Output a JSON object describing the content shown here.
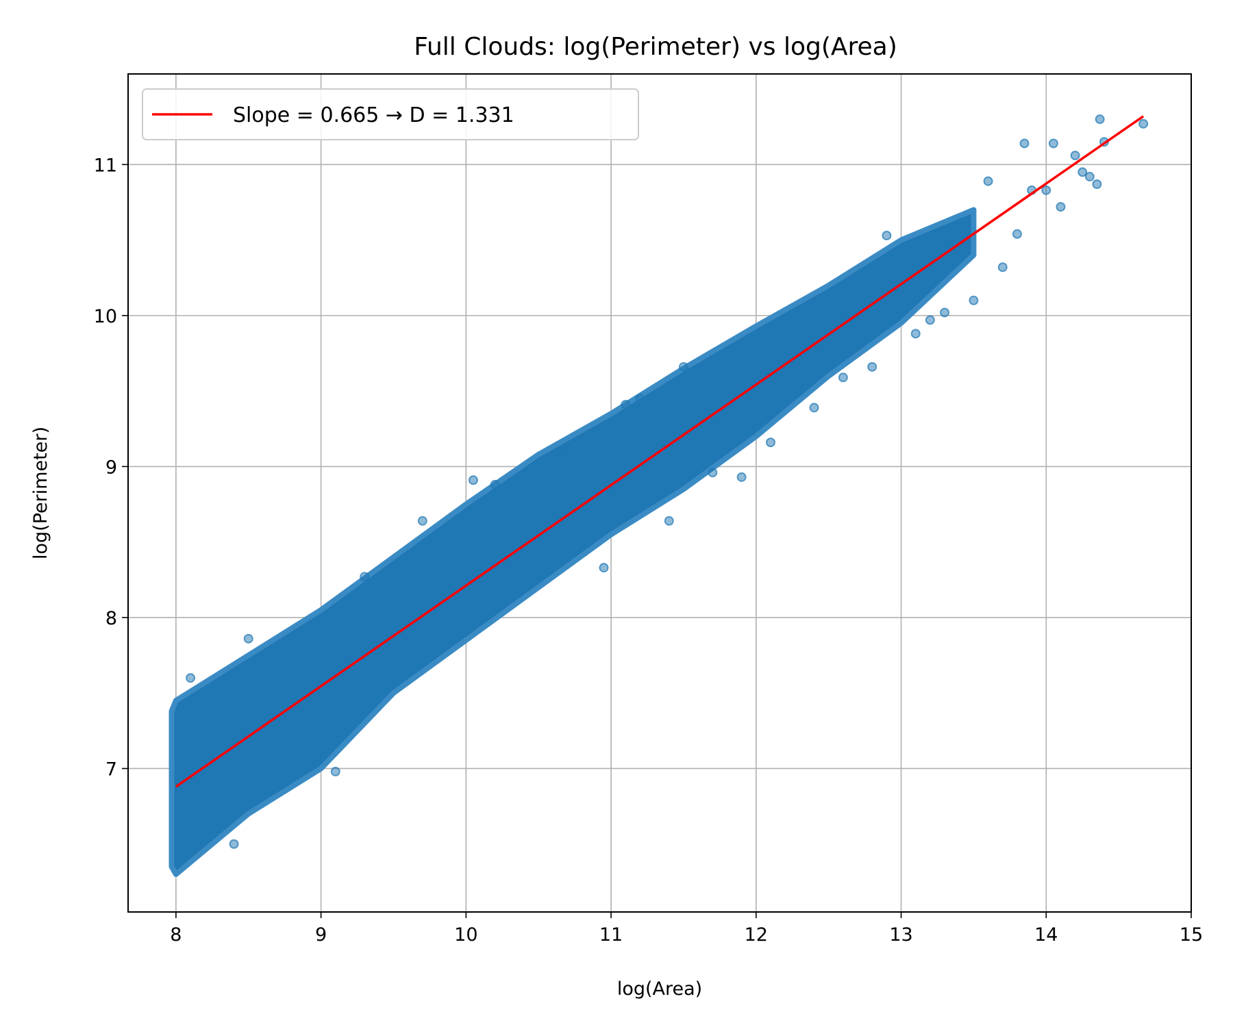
{
  "chart_data": {
    "type": "scatter",
    "title": "Full Clouds: log(Perimeter) vs log(Area)",
    "xlabel": "log(Area)",
    "ylabel": "log(Perimeter)",
    "xlim": [
      7.67,
      15.0
    ],
    "ylim": [
      6.05,
      11.6
    ],
    "x_ticks": [
      8,
      9,
      10,
      11,
      12,
      13,
      14,
      15
    ],
    "y_ticks": [
      7,
      8,
      9,
      10,
      11
    ],
    "x_tick_labels": [
      "8",
      "9",
      "10",
      "11",
      "12",
      "13",
      "14",
      "15"
    ],
    "y_tick_labels": [
      "7",
      "8",
      "9",
      "10",
      "11"
    ],
    "grid": true,
    "legend_position": "upper-left",
    "colors": {
      "points": "#1f77b4",
      "fit_line": "#ff0000",
      "grid": "#b0b0b0"
    },
    "fit_line": {
      "name": "Slope = 0.665 → D = 1.331",
      "slope": 0.665,
      "D": 1.331,
      "x": [
        8.0,
        14.67
      ],
      "y": [
        6.88,
        11.32
      ]
    },
    "scatter_band": {
      "polygon_x": [
        7.97,
        8.0,
        8.5,
        9.0,
        9.5,
        10.0,
        10.5,
        11.0,
        11.5,
        12.0,
        12.5,
        13.0,
        13.5,
        13.5,
        13.0,
        12.5,
        12.0,
        11.5,
        11.0,
        10.5,
        10.0,
        9.5,
        9.0,
        8.5,
        8.0,
        7.97
      ],
      "polygon_y": [
        7.38,
        7.45,
        7.75,
        8.05,
        8.4,
        8.75,
        9.08,
        9.35,
        9.65,
        9.93,
        10.2,
        10.5,
        10.7,
        10.4,
        9.95,
        9.6,
        9.2,
        8.85,
        8.55,
        8.2,
        7.85,
        7.5,
        7.0,
        6.7,
        6.3,
        6.35
      ]
    },
    "scatter_outliers": {
      "x": [
        8.1,
        8.4,
        8.5,
        9.1,
        9.3,
        9.7,
        10.05,
        10.2,
        10.65,
        10.95,
        11.1,
        11.2,
        11.4,
        11.5,
        11.7,
        11.9,
        12.1,
        12.4,
        12.6,
        12.8,
        12.9,
        13.1,
        13.2,
        13.3,
        13.5,
        13.6,
        13.7,
        13.8,
        13.85,
        13.9,
        14.0,
        14.05,
        14.1,
        14.2,
        14.25,
        14.3,
        14.35,
        14.37,
        14.4,
        14.67
      ],
      "y": [
        7.6,
        6.5,
        7.86,
        6.98,
        8.27,
        8.64,
        8.91,
        8.88,
        9.09,
        8.33,
        9.41,
        9.45,
        8.64,
        9.66,
        8.96,
        8.93,
        9.16,
        9.39,
        9.59,
        9.66,
        10.53,
        9.88,
        9.97,
        10.02,
        10.1,
        10.89,
        10.32,
        10.54,
        11.14,
        10.83,
        10.83,
        11.14,
        10.72,
        11.06,
        10.95,
        10.92,
        10.87,
        11.3,
        11.15,
        11.27
      ]
    }
  }
}
